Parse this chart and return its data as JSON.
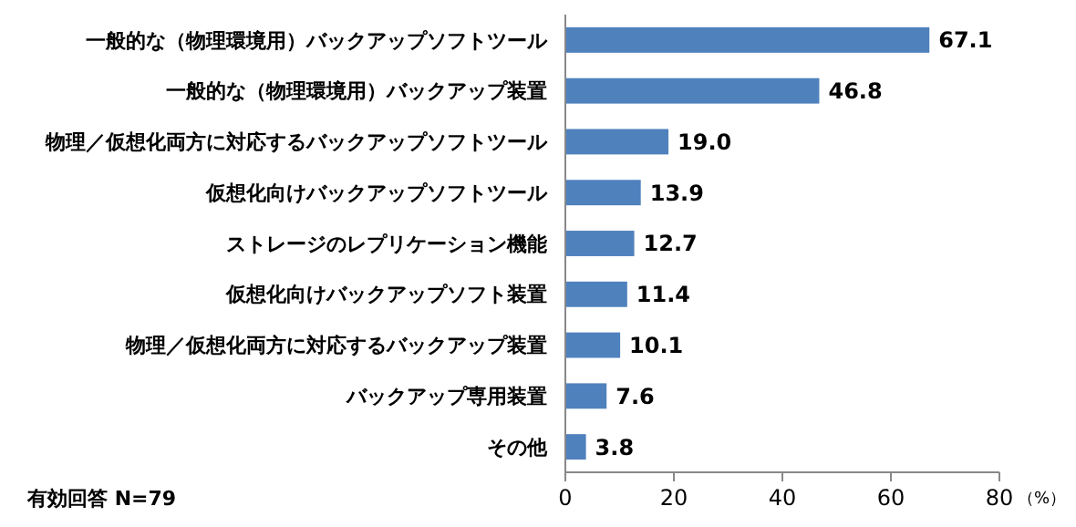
{
  "chart_data": {
    "type": "bar",
    "orientation": "horizontal",
    "categories": [
      "一般的な（物理環境用）バックアップソフトツール",
      "一般的な（物理環境用）バックアップ装置",
      "物理／仮想化両方に対応するバックアップソフトツール",
      "仮想化向けバックアップソフトツール",
      "ストレージのレプリケーション機能",
      "仮想化向けバックアップソフト装置",
      "物理／仮想化両方に対応するバックアップ装置",
      "バックアップ専用装置",
      "その他"
    ],
    "values": [
      67.1,
      46.8,
      19.0,
      13.9,
      12.7,
      11.4,
      10.1,
      7.6,
      3.8
    ],
    "value_labels": [
      "67.1",
      "46.8",
      "19.0",
      "13.9",
      "12.7",
      "11.4",
      "10.1",
      "7.6",
      "3.8"
    ],
    "color": "#4f81bd",
    "xlim": [
      0,
      80
    ],
    "xticks": [
      0,
      20,
      40,
      60,
      80
    ],
    "xlabel": "（%）",
    "grid": false,
    "annotations": [
      "有効回答 N=79"
    ]
  }
}
